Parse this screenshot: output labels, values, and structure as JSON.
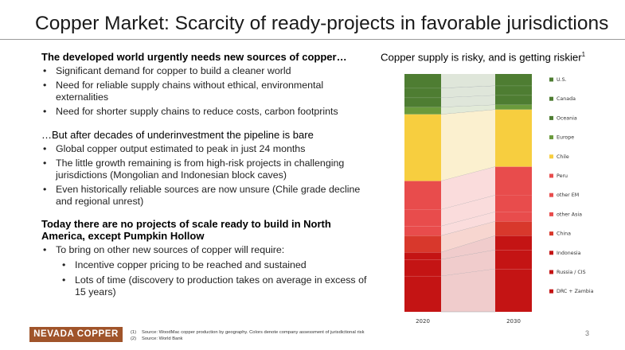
{
  "title": "Copper Market: Scarcity of ready-projects in favorable jurisdictions",
  "left": {
    "section1": {
      "heading": "The developed world urgently needs new sources of copper…",
      "bullets": [
        "Significant demand for copper to build a cleaner world",
        "Need for reliable supply chains without ethical, environmental externalities",
        "Need for shorter supply chains to reduce costs, carbon footprints"
      ]
    },
    "section2": {
      "heading": "…But after decades of underinvestment the pipeline is bare",
      "bullets": [
        "Global copper output estimated to peak in just 24 months",
        "The little growth remaining is from high-risk projects in challenging jurisdictions (Mongolian and Indonesian block caves)",
        "Even historically reliable sources are now unsure (Chile grade decline and regional unrest)"
      ]
    },
    "section3": {
      "heading": "Today there are no projects of scale ready to build in North America, except Pumpkin Hollow",
      "bullet": "To bring on other new sources of copper will require:",
      "subbullets": [
        "Incentive copper pricing to be reached and sustained",
        "Lots of time (discovery to production takes on average in excess of 15 years)"
      ]
    }
  },
  "right_title": {
    "text": "Copper supply is risky, and is getting riskier",
    "sup": "1"
  },
  "chart_data": {
    "type": "bar",
    "stacked": true,
    "normalized_100": true,
    "categories": [
      "2020",
      "2030"
    ],
    "series": [
      {
        "name": "U.S.",
        "values": [
          6,
          5
        ],
        "color": "#4e7d32",
        "band": "#dfe6da"
      },
      {
        "name": "Canada",
        "values": [
          4,
          4
        ],
        "color": "#4e7d32",
        "band": "#dfe6da"
      },
      {
        "name": "Oceania",
        "values": [
          4,
          4
        ],
        "color": "#4e7d32",
        "band": "#dfe6da"
      },
      {
        "name": "Europe",
        "values": [
          3,
          2
        ],
        "color": "#6a9a3c",
        "band": "#e2ead8"
      },
      {
        "name": "Chile",
        "values": [
          28,
          24
        ],
        "color": "#f7ce3f",
        "band": "#fbf0cf"
      },
      {
        "name": "Peru",
        "values": [
          12,
          12
        ],
        "color": "#e84c4c",
        "band": "#fadcdc"
      },
      {
        "name": "other EM",
        "values": [
          7,
          7
        ],
        "color": "#e84c4c",
        "band": "#fadcdc"
      },
      {
        "name": "other Asia",
        "values": [
          4,
          4
        ],
        "color": "#e84c4c",
        "band": "#fadcdc"
      },
      {
        "name": "China",
        "values": [
          7,
          6
        ],
        "color": "#d8382c",
        "band": "#f7d6d0"
      },
      {
        "name": "Indonesia",
        "values": [
          3,
          6
        ],
        "color": "#c41414",
        "band": "#f0cccc"
      },
      {
        "name": "Russia / CIS",
        "values": [
          7,
          8
        ],
        "color": "#c41414",
        "band": "#f0cccc"
      },
      {
        "name": "DRC + Zambia",
        "values": [
          15,
          18
        ],
        "color": "#c41414",
        "band": "#f0cccc"
      }
    ]
  },
  "footer": {
    "logo": "NEVADA COPPER",
    "footnotes": [
      {
        "num": "(1)",
        "text": "Source: WoodMac copper production by geography. Colors denote company assessment of jurisdictional risk"
      },
      {
        "num": "(2)",
        "text": "Source: World Bank"
      }
    ],
    "page": "3"
  }
}
